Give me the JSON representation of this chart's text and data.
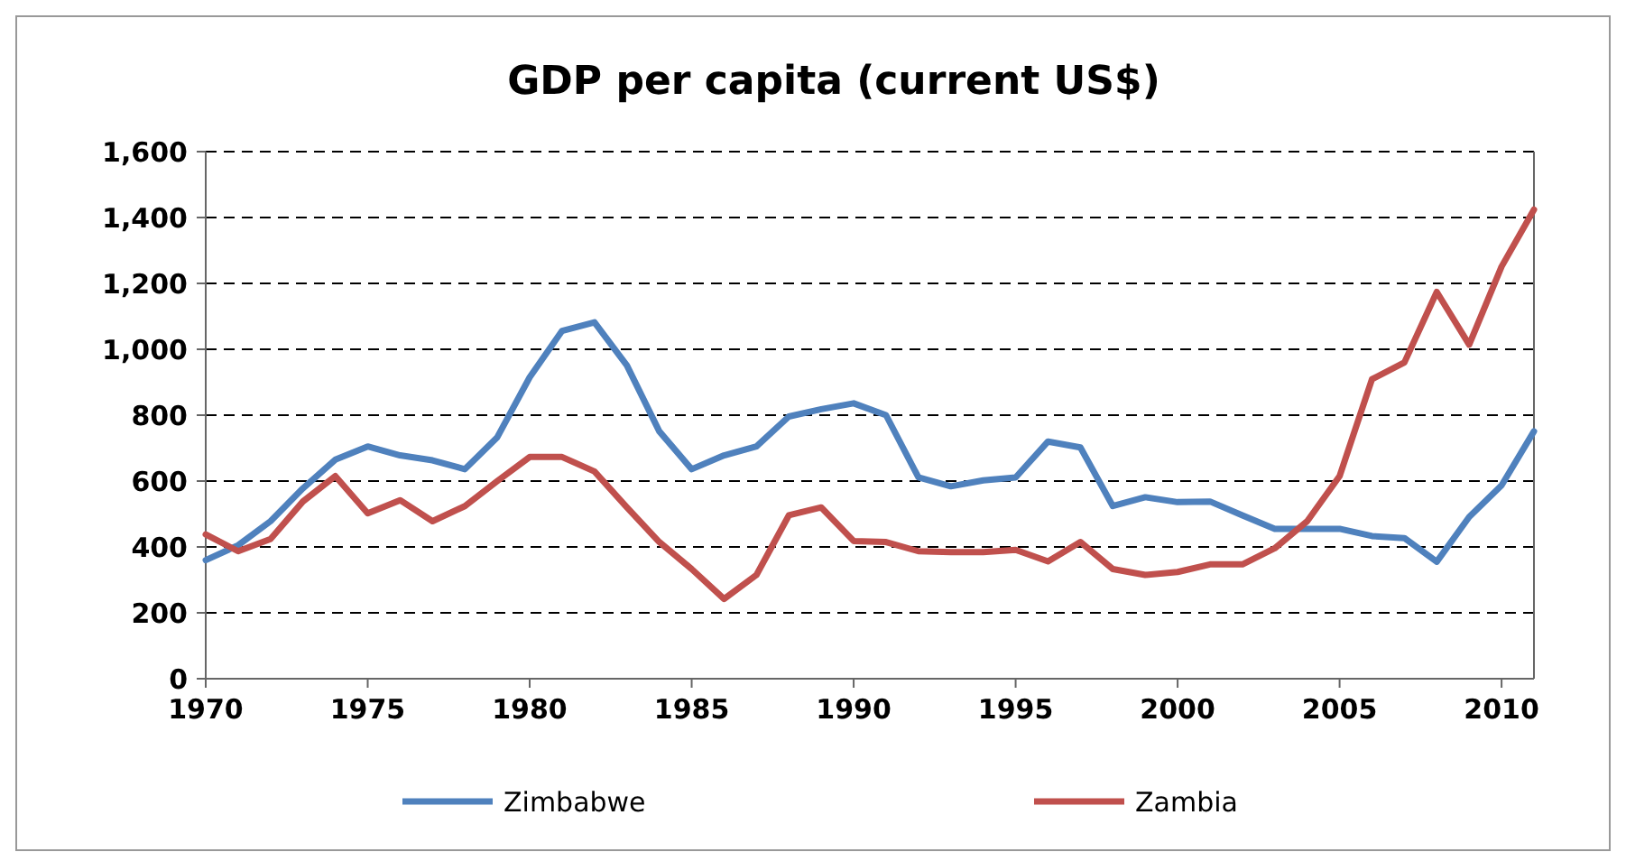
{
  "chart_data": {
    "type": "line",
    "title": "GDP per capita (current US$)",
    "x": [
      1970,
      1971,
      1972,
      1973,
      1974,
      1975,
      1976,
      1977,
      1978,
      1979,
      1980,
      1981,
      1982,
      1983,
      1984,
      1985,
      1986,
      1987,
      1988,
      1989,
      1990,
      1991,
      1992,
      1993,
      1994,
      1995,
      1996,
      1997,
      1998,
      1999,
      2000,
      2001,
      2002,
      2003,
      2004,
      2005,
      2006,
      2007,
      2008,
      2009,
      2010,
      2011
    ],
    "series": [
      {
        "name": "Zimbabwe",
        "color": "#4f81bd",
        "values": [
          360,
          405,
          478,
          578,
          665,
          705,
          678,
          663,
          636,
          733,
          915,
          1056,
          1082,
          951,
          751,
          636,
          678,
          705,
          796,
          818,
          836,
          800,
          611,
          584,
          602,
          611,
          720,
          702,
          524,
          551,
          536,
          538,
          496,
          455,
          455,
          455,
          433,
          427,
          355,
          491,
          587,
          751
        ]
      },
      {
        "name": "Zambia",
        "color": "#c0504d",
        "values": [
          438,
          387,
          424,
          538,
          615,
          502,
          542,
          478,
          524,
          600,
          673,
          673,
          629,
          520,
          415,
          333,
          242,
          315,
          496,
          520,
          418,
          415,
          387,
          384,
          384,
          391,
          356,
          415,
          333,
          315,
          324,
          347,
          347,
          396,
          478,
          615,
          909,
          960,
          1174,
          1014,
          1251,
          1424
        ]
      }
    ],
    "xlim": [
      1970,
      2011
    ],
    "xticks": [
      1970,
      1975,
      1980,
      1985,
      1990,
      1995,
      2000,
      2005,
      2010
    ],
    "ylim": [
      0,
      1600
    ],
    "yticks": [
      {
        "value": 0,
        "label": "0"
      },
      {
        "value": 200,
        "label": "200"
      },
      {
        "value": 400,
        "label": "400"
      },
      {
        "value": 600,
        "label": "600"
      },
      {
        "value": 800,
        "label": "800"
      },
      {
        "value": 1000,
        "label": "1,000"
      },
      {
        "value": 1200,
        "label": "1,200"
      },
      {
        "value": 1400,
        "label": "1,400"
      },
      {
        "value": 1600,
        "label": "1,600"
      }
    ],
    "grid": "y",
    "legend": "bottom",
    "line_style": "solid",
    "marker": "none"
  }
}
